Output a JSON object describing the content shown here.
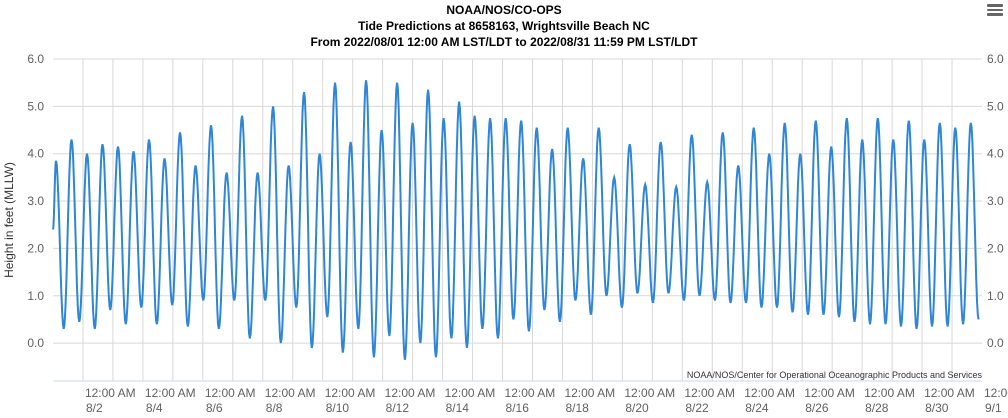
{
  "title": {
    "line1": "NOAA/NOS/CO-OPS",
    "line2": "Tide Predictions at 8658163, Wrightsville Beach NC",
    "line3": "From 2022/08/01 12:00 AM LST/LDT to 2022/08/31 11:59 PM LST/LDT"
  },
  "credit": "NOAA/NOS/Center for Operational Oceanographic Products and Services",
  "menu_icon": "hamburger-menu-icon",
  "colors": {
    "series": "#2f86d6",
    "grid": "#d8d8d8"
  },
  "chart_data": {
    "type": "line",
    "ylabel": "Height in feet (MLLW)",
    "ylim": [
      -0.8,
      6.0
    ],
    "yticks": [
      "6.0",
      "5.0",
      "4.0",
      "3.0",
      "2.0",
      "1.0",
      "0.0"
    ],
    "yticks_values": [
      6,
      5,
      4,
      3,
      2,
      1,
      0
    ],
    "xlim_days": [
      0,
      31
    ],
    "xticks": [
      {
        "day": 1,
        "time": "12:00 AM",
        "date": "8/2"
      },
      {
        "day": 3,
        "time": "12:00 AM",
        "date": "8/4"
      },
      {
        "day": 5,
        "time": "12:00 AM",
        "date": "8/6"
      },
      {
        "day": 7,
        "time": "12:00 AM",
        "date": "8/8"
      },
      {
        "day": 9,
        "time": "12:00 AM",
        "date": "8/10"
      },
      {
        "day": 11,
        "time": "12:00 AM",
        "date": "8/12"
      },
      {
        "day": 13,
        "time": "12:00 AM",
        "date": "8/14"
      },
      {
        "day": 15,
        "time": "12:00 AM",
        "date": "8/16"
      },
      {
        "day": 17,
        "time": "12:00 AM",
        "date": "8/18"
      },
      {
        "day": 19,
        "time": "12:00 AM",
        "date": "8/20"
      },
      {
        "day": 21,
        "time": "12:00 AM",
        "date": "8/22"
      },
      {
        "day": 23,
        "time": "12:00 AM",
        "date": "8/24"
      },
      {
        "day": 25,
        "time": "12:00 AM",
        "date": "8/26"
      },
      {
        "day": 27,
        "time": "12:00 AM",
        "date": "8/28"
      },
      {
        "day": 29,
        "time": "12:00 AM",
        "date": "8/30"
      },
      {
        "day": 31,
        "time": "12:00 AM",
        "date": "9/1"
      }
    ],
    "series": [
      {
        "highs": [
          3.85,
          4.3,
          4.0,
          4.2,
          4.15,
          4.05,
          4.3,
          3.9,
          4.45,
          3.75,
          4.6,
          3.6,
          4.8,
          3.6,
          5.0,
          3.75,
          5.3,
          4.0,
          5.5,
          4.25,
          5.55,
          4.5,
          5.5,
          4.65,
          5.35,
          4.75,
          5.1,
          4.8,
          4.75,
          4.75,
          4.7,
          4.55,
          4.1,
          4.55,
          3.9,
          4.55,
          3.5,
          4.2,
          3.35,
          4.25,
          3.3,
          4.4,
          3.4,
          4.45,
          3.75,
          4.55,
          4.0,
          4.65,
          4.0,
          4.7,
          4.15,
          4.75,
          4.3,
          4.75,
          4.3,
          4.7,
          4.3,
          4.65,
          4.55,
          4.65
        ],
        "lows": [
          0.3,
          0.45,
          0.3,
          0.7,
          0.4,
          0.75,
          0.4,
          0.8,
          0.35,
          0.9,
          0.3,
          0.9,
          0.1,
          0.9,
          0.0,
          0.75,
          -0.1,
          0.55,
          -0.2,
          0.3,
          -0.3,
          0.15,
          -0.35,
          0.0,
          -0.3,
          0.1,
          -0.1,
          0.3,
          0.1,
          0.5,
          0.25,
          0.7,
          0.45,
          0.9,
          0.6,
          1.0,
          0.75,
          1.05,
          0.85,
          1.05,
          0.9,
          1.0,
          0.9,
          0.85,
          0.85,
          0.75,
          0.75,
          0.65,
          0.6,
          0.6,
          0.55,
          0.45,
          0.4,
          0.4,
          0.35,
          0.3,
          0.35,
          0.35,
          0.4,
          0.5
        ]
      }
    ]
  }
}
